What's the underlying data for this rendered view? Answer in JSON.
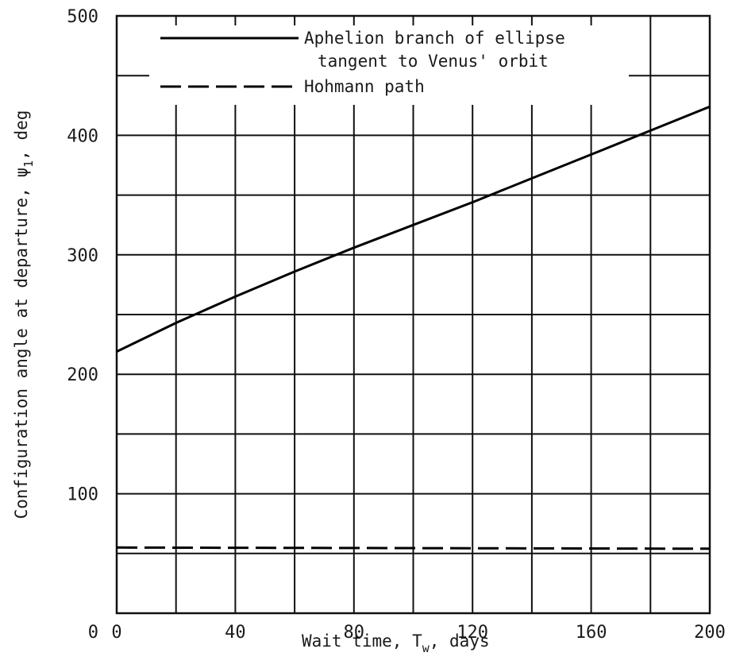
{
  "chart_data": {
    "type": "line",
    "title": "",
    "xlabel": "Wait time, T",
    "xlabel_sub": "w",
    "xlabel_suffix": ", days",
    "ylabel": "Configuration angle at departure, ψ",
    "ylabel_sub": "1",
    "ylabel_suffix": ", deg",
    "xlim": [
      0,
      200
    ],
    "ylim": [
      0,
      500
    ],
    "x_ticks": [
      {
        "value": 0,
        "label": "0"
      },
      {
        "value": 40,
        "label": "40"
      },
      {
        "value": 80,
        "label": "80"
      },
      {
        "value": 120,
        "label": "120"
      },
      {
        "value": 160,
        "label": "160"
      },
      {
        "value": 200,
        "label": "200"
      }
    ],
    "y_ticks": [
      {
        "value": 100,
        "label": "100"
      },
      {
        "value": 200,
        "label": "200"
      },
      {
        "value": 300,
        "label": "300"
      },
      {
        "value": 400,
        "label": "400"
      },
      {
        "value": 500,
        "label": "500"
      }
    ],
    "grid": true,
    "legend_position": "top",
    "legend": [
      {
        "label_line1": "Aphelion branch of ellipse",
        "label_line2": "tangent to Venus' orbit",
        "style": "solid"
      },
      {
        "label_line1": "Hohmann path",
        "label_line2": "",
        "style": "dashed"
      }
    ],
    "series": [
      {
        "style": "solid",
        "x": [
          0,
          20,
          40,
          60,
          80,
          100,
          120,
          140,
          160,
          180,
          200
        ],
        "y": [
          219,
          243,
          265,
          286,
          306,
          325,
          344,
          364,
          384,
          404,
          424
        ]
      },
      {
        "style": "dashed",
        "x": [
          0,
          200
        ],
        "y": [
          55,
          54
        ]
      }
    ]
  }
}
